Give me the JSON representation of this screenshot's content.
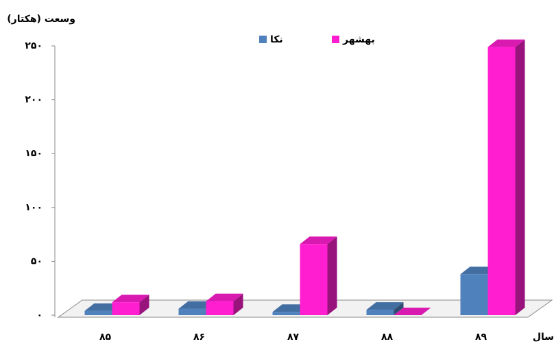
{
  "chart_data": {
    "type": "bar3d",
    "y_label": "وسعت (هکتار)",
    "x_label": "سال",
    "categories": [
      "۸۵",
      "۸۶",
      "۸۷",
      "۸۸",
      "۸۹"
    ],
    "series": [
      {
        "name": "نکا",
        "color": "#4f81bd",
        "values": [
          4,
          6,
          3,
          5,
          38
        ]
      },
      {
        "name": "بهشهر",
        "color": "#ff1fd0",
        "values": [
          12,
          13,
          66,
          0,
          249
        ]
      }
    ],
    "ylim": [
      0,
      250
    ],
    "yticks": [
      {
        "value": 0,
        "label": "۰"
      },
      {
        "value": 50,
        "label": "۵۰"
      },
      {
        "value": 100,
        "label": "۱۰۰"
      },
      {
        "value": 150,
        "label": "۱۵۰"
      },
      {
        "value": 200,
        "label": "۲۰۰"
      },
      {
        "value": 250,
        "label": "۲۵۰"
      }
    ],
    "legend": "top"
  }
}
